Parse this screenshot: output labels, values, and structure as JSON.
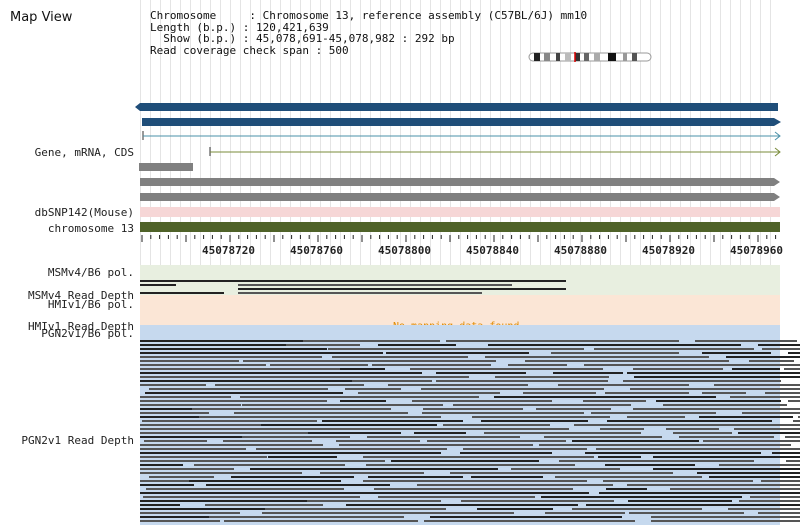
{
  "app": {
    "title": "Map View"
  },
  "header": {
    "chromosome_line": "Chromosome     : Chromosome 13, reference assembly (C57BL/6J) mm10",
    "length_line": "Length (b.p.) : 120,421,639",
    "show_line": "  Show (b.p.) : 45,078,691-45,078,982 : 292 bp",
    "coverage_line": "Read coverage check span : 500"
  },
  "tracks": {
    "gene_label": "Gene, mRNA, CDS",
    "snp_label": "dbSNP142(Mouse)",
    "chrom_label": "chromosome 13",
    "msm_pol_label": "MSMv4/B6 pol.",
    "msm_depth_label": "MSMv4 Read Depth",
    "hmi_pol_label": "HMIv1/B6 pol.",
    "hmi_depth_label": "HMIv1 Read Depth",
    "hmi_message": "No mapping data found.",
    "pgn_pol_label": "PGN2v1/B6 pol.",
    "pgn_depth_label": "PGN2v1 Read Depth"
  },
  "ruler": {
    "ticks": [
      "45078720",
      "45078760",
      "45078800",
      "45078840",
      "45078880",
      "45078920",
      "45078960"
    ]
  },
  "colors": {
    "gene_navy": "#1f4e79",
    "transcript_line": "#4a90a8",
    "mrna_line": "#7a8b3a",
    "gray_bar": "#808080",
    "snp_band": "#f6d6d6",
    "chrom_band": "#4f6228",
    "msm_band": "#e8efe0",
    "hmi_band": "#fbe6d6",
    "pgn_band": "#c6d9ee",
    "read_color": "#555555",
    "no_data_text": "#e08a00"
  }
}
